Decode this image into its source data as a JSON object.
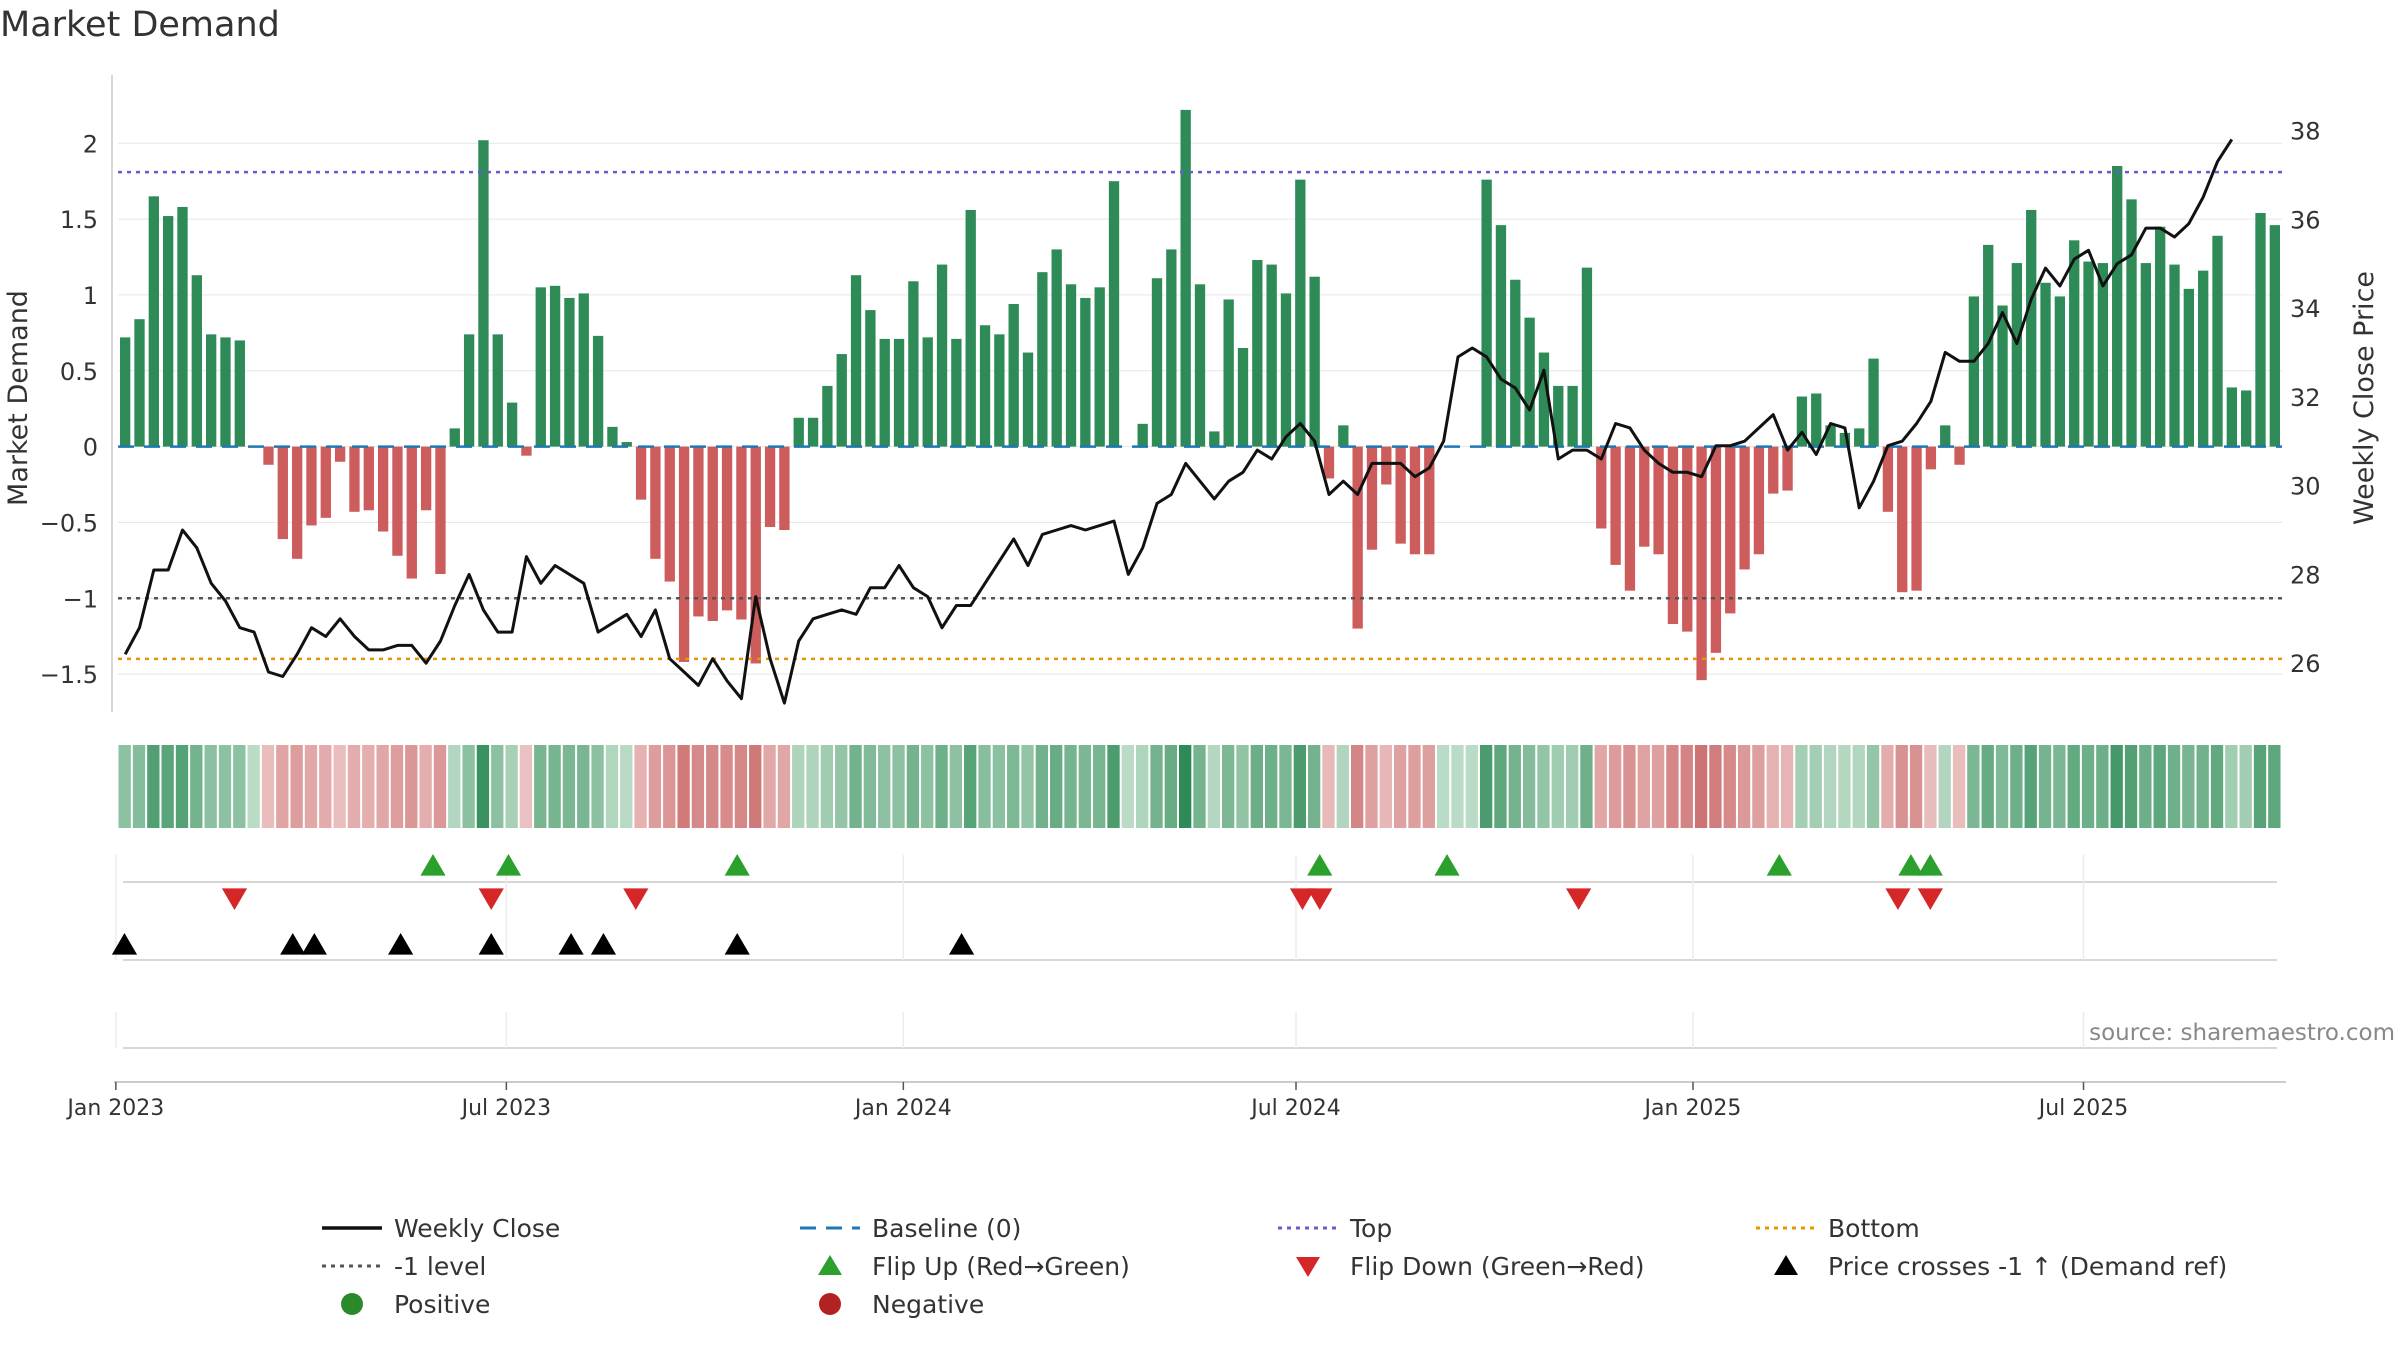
{
  "chart_data": {
    "type": "bar",
    "title": "Market Demand",
    "ylabel_left": "Market Demand",
    "ylabel_right": "Weekly Close Price",
    "source_note": "source: sharemaestro.com",
    "x_start": "2023-01-02",
    "x_end": "2025-10-01",
    "x_ticks": [
      {
        "date": "2023-01-01",
        "label": "Jan 2023"
      },
      {
        "date": "2023-07-01",
        "label": "Jul 2023"
      },
      {
        "date": "2024-01-01",
        "label": "Jan 2024"
      },
      {
        "date": "2024-07-01",
        "label": "Jul 2024"
      },
      {
        "date": "2025-01-01",
        "label": "Jan 2025"
      },
      {
        "date": "2025-07-01",
        "label": "Jul 2025"
      }
    ],
    "y_left": {
      "min": -1.75,
      "max": 2.45,
      "ticks": [
        {
          "v": -1.5,
          "label": "−1.5"
        },
        {
          "v": -1,
          "label": "−1"
        },
        {
          "v": -0.5,
          "label": "−0.5"
        },
        {
          "v": 0,
          "label": "0"
        },
        {
          "v": 0.5,
          "label": "0.5"
        },
        {
          "v": 1,
          "label": "1"
        },
        {
          "v": 1.5,
          "label": "1.5"
        },
        {
          "v": 2,
          "label": "2"
        }
      ]
    },
    "y_right": {
      "min": 24.9,
      "max": 39.25,
      "ticks": [
        {
          "v": 26,
          "label": "26"
        },
        {
          "v": 28,
          "label": "28"
        },
        {
          "v": 30,
          "label": "30"
        },
        {
          "v": 32,
          "label": "32"
        },
        {
          "v": 34,
          "label": "34"
        },
        {
          "v": 36,
          "label": "36"
        },
        {
          "v": 38,
          "label": "38"
        }
      ]
    },
    "top_level": 1.81,
    "bottom_level": -1.4,
    "minus_one_level": -1,
    "demand": [
      0.72,
      0.84,
      1.65,
      1.52,
      1.58,
      1.13,
      0.74,
      0.72,
      0.7,
      0,
      -0.12,
      -0.61,
      -0.74,
      -0.52,
      -0.47,
      -0.1,
      -0.43,
      -0.42,
      -0.56,
      -0.72,
      -0.87,
      -0.42,
      -0.84,
      0.12,
      0.74,
      2.02,
      0.74,
      0.29,
      -0.06,
      1.05,
      1.06,
      0.98,
      1.01,
      0.73,
      0.13,
      0.03,
      -0.35,
      -0.74,
      -0.89,
      -1.42,
      -1.12,
      -1.15,
      -1.08,
      -1.14,
      -1.43,
      -0.53,
      -0.55,
      0.19,
      0.19,
      0.4,
      0.61,
      1.13,
      0.9,
      0.71,
      0.71,
      1.09,
      0.72,
      1.2,
      0.71,
      1.56,
      0.8,
      0.74,
      0.94,
      0.62,
      1.15,
      1.3,
      1.07,
      0.98,
      1.05,
      1.75,
      0,
      0.15,
      1.11,
      1.3,
      2.22,
      1.07,
      0.1,
      0.97,
      0.65,
      1.23,
      1.2,
      1.01,
      1.76,
      1.12,
      -0.21,
      0.14,
      -1.2,
      -0.68,
      -0.25,
      -0.64,
      -0.71,
      -0.71,
      0,
      0,
      0,
      1.76,
      1.46,
      1.1,
      0.85,
      0.62,
      0.4,
      0.4,
      1.18,
      -0.54,
      -0.78,
      -0.95,
      -0.66,
      -0.71,
      -1.17,
      -1.22,
      -1.54,
      -1.36,
      -1.1,
      -0.81,
      -0.71,
      -0.31,
      -0.29,
      0.33,
      0.35,
      0.14,
      0.09,
      0.12,
      0.58,
      -0.43,
      -0.96,
      -0.95,
      -0.15,
      0.14,
      -0.12,
      0.99,
      1.33,
      0.93,
      1.21,
      1.56,
      1.08,
      0.99,
      1.36,
      1.22,
      1.21,
      1.85,
      1.63,
      1.21,
      1.45,
      1.2,
      1.04,
      1.16,
      1.39,
      0.39,
      0.37,
      1.54,
      1.46
    ],
    "close": [
      26.2,
      26.8,
      28.1,
      28.1,
      29.0,
      28.6,
      27.8,
      27.4,
      26.8,
      26.7,
      25.8,
      25.7,
      26.2,
      26.8,
      26.6,
      27.0,
      26.6,
      26.3,
      26.3,
      26.4,
      26.4,
      26.0,
      26.5,
      27.3,
      28.0,
      27.2,
      26.7,
      26.7,
      28.4,
      27.8,
      28.2,
      28.0,
      27.8,
      26.7,
      26.9,
      27.1,
      26.6,
      27.2,
      26.1,
      25.8,
      25.5,
      26.1,
      25.6,
      25.2,
      27.5,
      26.1,
      25.1,
      26.5,
      27.0,
      27.1,
      27.2,
      27.1,
      27.7,
      27.7,
      28.2,
      27.7,
      27.5,
      26.8,
      27.3,
      27.3,
      27.8,
      28.3,
      28.8,
      28.2,
      28.9,
      29.0,
      29.1,
      29.0,
      29.1,
      29.2,
      28.0,
      28.6,
      29.6,
      29.8,
      30.5,
      30.1,
      29.7,
      30.1,
      30.3,
      30.8,
      30.6,
      31.1,
      31.4,
      31.0,
      29.8,
      30.1,
      29.8,
      30.5,
      30.5,
      30.5,
      30.2,
      30.4,
      31.0,
      32.9,
      33.1,
      32.9,
      32.4,
      32.2,
      31.7,
      32.6,
      30.6,
      30.8,
      30.8,
      30.6,
      31.4,
      31.3,
      30.8,
      30.5,
      30.3,
      30.3,
      30.2,
      30.9,
      30.9,
      31.0,
      31.3,
      31.6,
      30.8,
      31.2,
      30.7,
      31.4,
      31.3,
      29.5,
      30.1,
      30.9,
      31.0,
      31.4,
      31.9,
      33.0,
      32.8,
      32.8,
      33.2,
      33.9,
      33.2,
      34.2,
      34.9,
      34.5,
      35.1,
      35.3,
      34.5,
      35.0,
      35.2,
      35.8,
      35.8,
      35.6,
      35.9,
      36.5,
      37.3,
      37.8
    ],
    "heat_strip": "one cell per week; green = positive demand, red = negative demand, shade intensity scales with magnitude",
    "events": {
      "flip_up": [
        30,
        38,
        62,
        117,
        132,
        161,
        173,
        175
      ],
      "flip_down": [
        16,
        72,
        101,
        109,
        138,
        140,
        151,
        168
      ],
      "price_cross": [
        2,
        24,
        27,
        39,
        42,
        51,
        56,
        62,
        66
      ]
    },
    "event_dates": {
      "flip_up": [
        "2023-05-28",
        "2023-07-02",
        "2023-10-16",
        "2024-07-12",
        "2024-09-09",
        "2025-02-10",
        "2025-04-12",
        "2025-04-21"
      ],
      "flip_down": [
        "2023-02-25",
        "2023-06-24",
        "2023-08-30",
        "2024-07-04",
        "2024-07-12",
        "2024-11-09",
        "2025-04-06",
        "2025-04-21"
      ],
      "price_cross": [
        "2023-01-05",
        "2023-03-24",
        "2023-04-03",
        "2023-05-13",
        "2023-06-24",
        "2023-07-31",
        "2023-08-15",
        "2023-10-16",
        "2024-01-28"
      ]
    },
    "legend": [
      {
        "label": "Weekly Close",
        "kind": "line",
        "color": "#111111"
      },
      {
        "label": "Baseline (0)",
        "kind": "dash",
        "color": "#1f77b4"
      },
      {
        "label": "Top",
        "kind": "dot",
        "color": "#6a5acd"
      },
      {
        "label": "Bottom",
        "kind": "dot",
        "color": "#e69500"
      },
      {
        "label": "-1 level",
        "kind": "dot",
        "color": "#555555"
      },
      {
        "label": "Flip Up (Red→Green)",
        "kind": "tri-up",
        "color": "#2ca02c"
      },
      {
        "label": "Flip Down (Green→Red)",
        "kind": "tri-down",
        "color": "#d62728"
      },
      {
        "label": "Price crosses -1 ↑ (Demand ref)",
        "kind": "tri-up",
        "color": "#000000"
      },
      {
        "label": "Positive",
        "kind": "circle",
        "color": "#2a8a2a"
      },
      {
        "label": "Negative",
        "kind": "circle",
        "color": "#b22222"
      }
    ],
    "colors": {
      "positive_bar": "#2e8b57",
      "negative_bar": "#cd5c5c",
      "line": "#111111",
      "grid": "#e6e6e6"
    }
  }
}
